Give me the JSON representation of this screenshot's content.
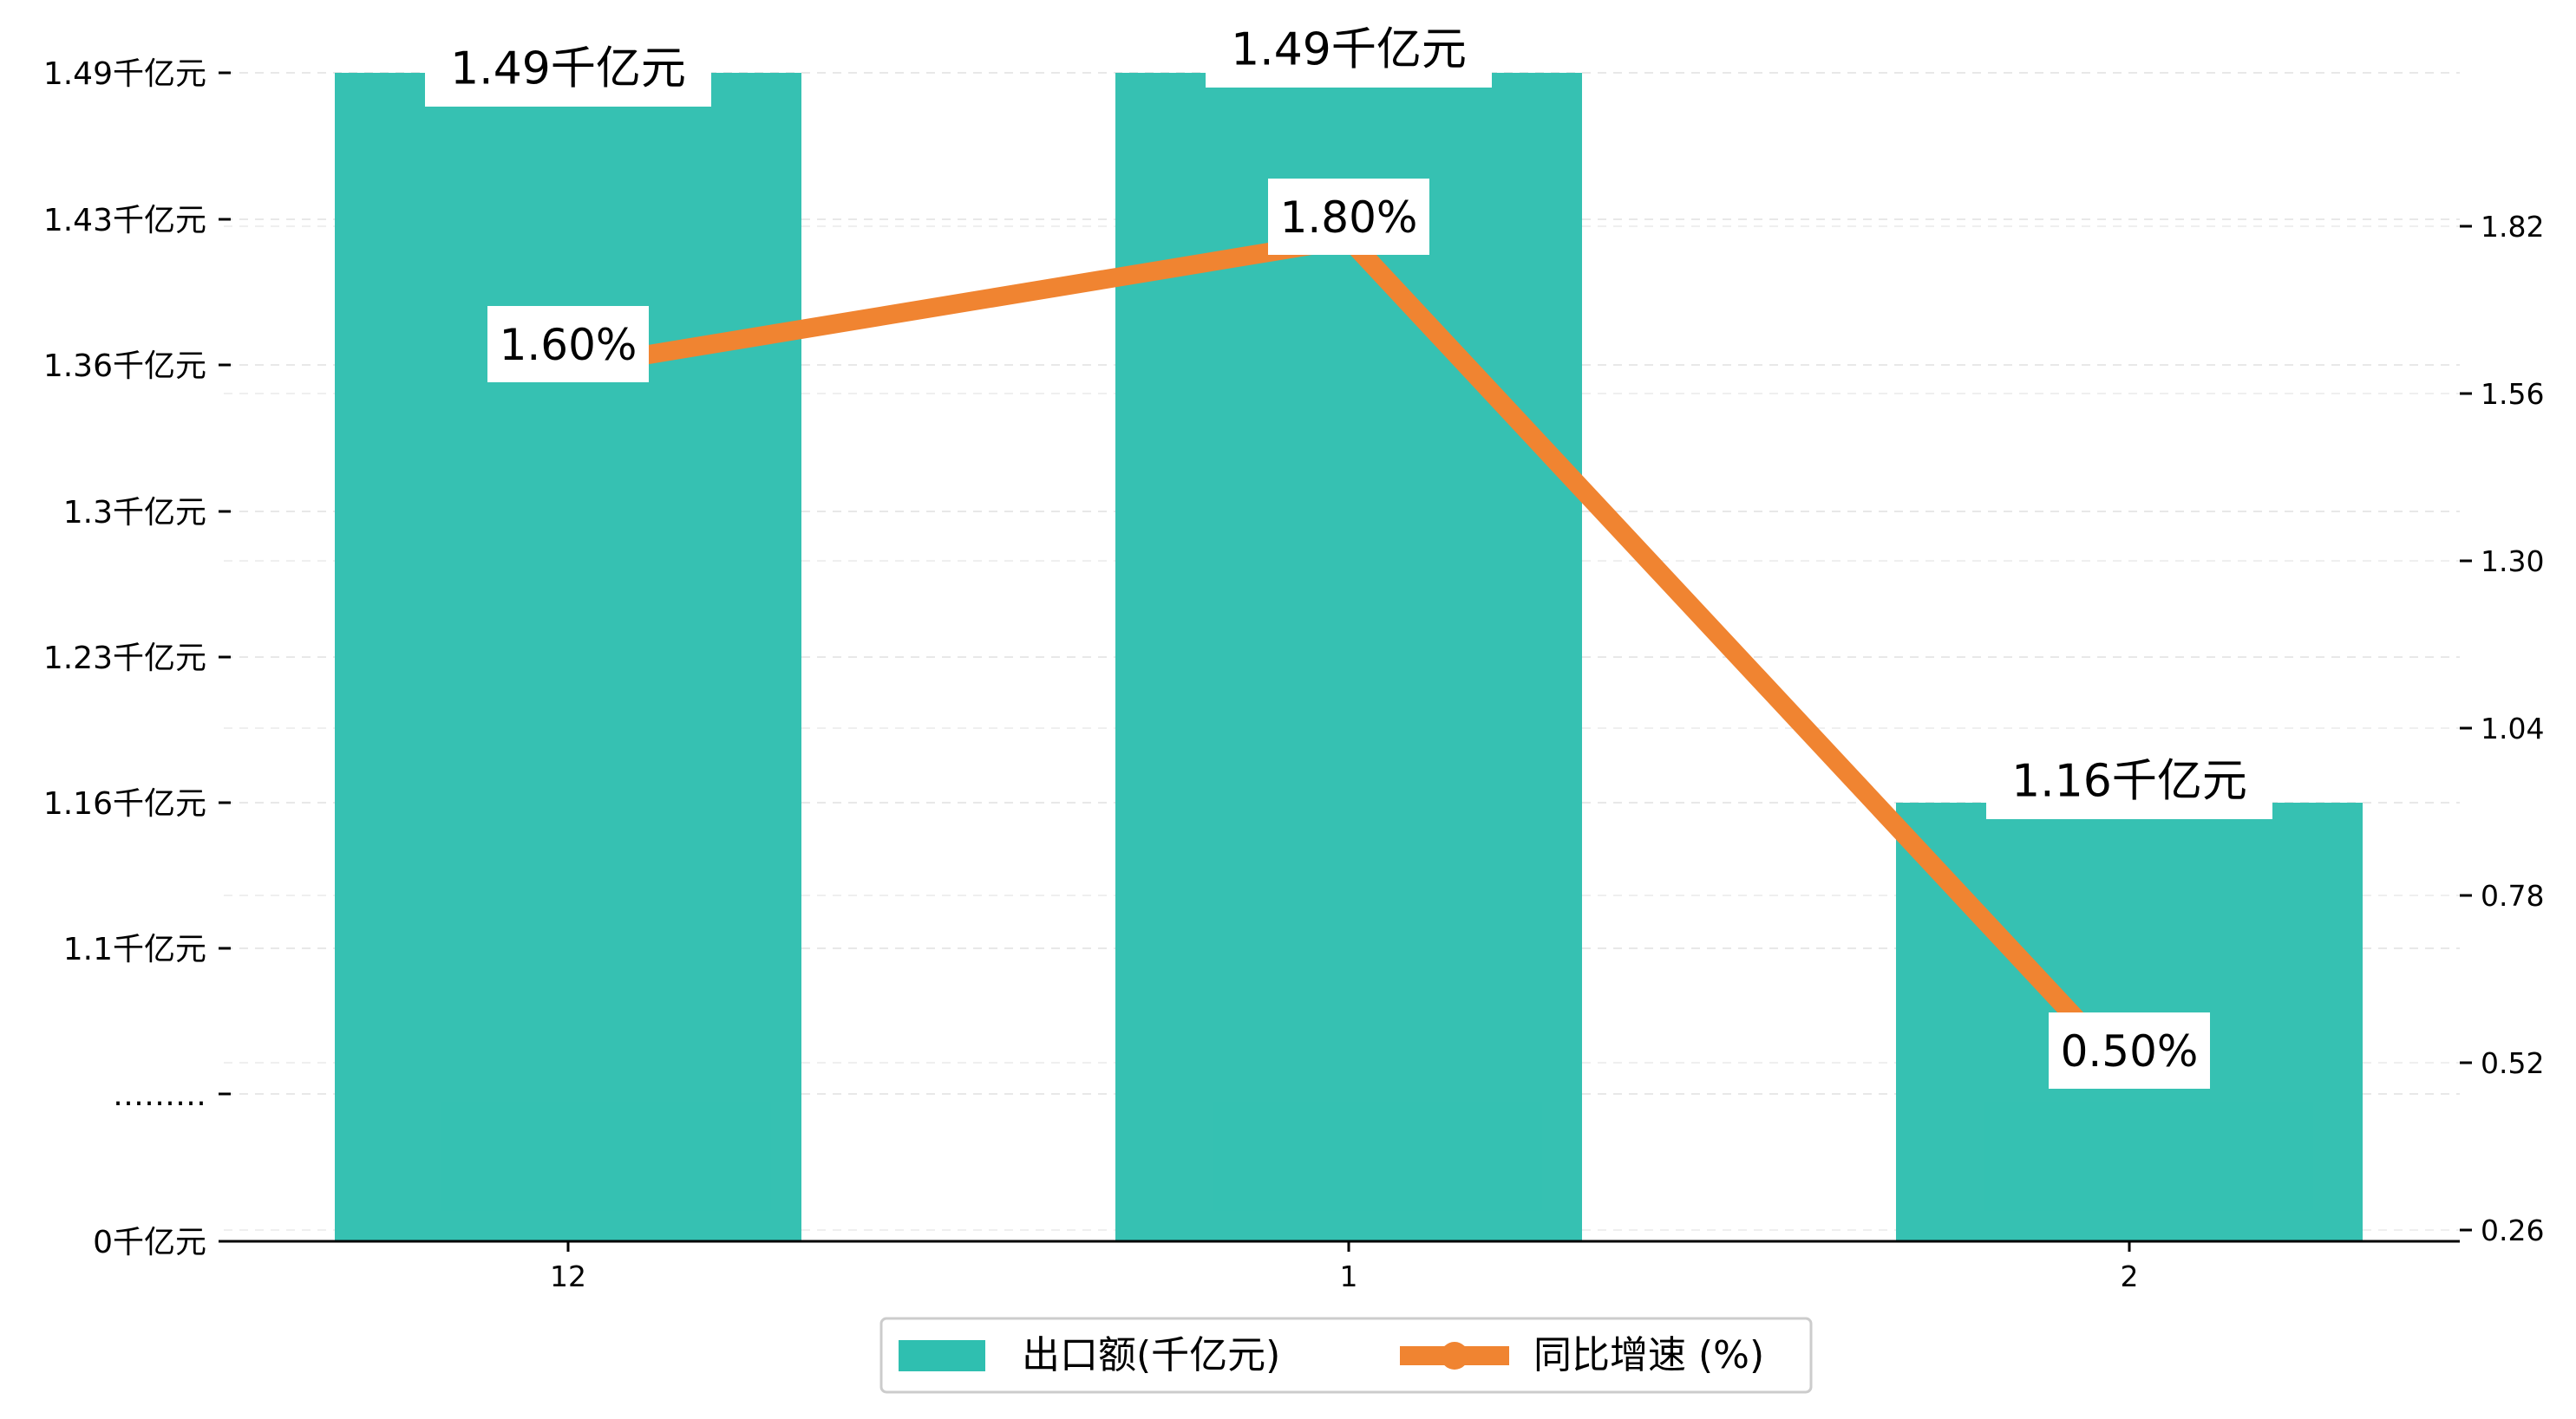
{
  "chart_data": {
    "type": "bar",
    "categories": [
      "12",
      "1",
      "2"
    ],
    "series": [
      {
        "name": "出口额(千亿元)",
        "type": "bar",
        "axis": "left",
        "values": [
          1.49,
          1.49,
          1.16
        ],
        "labels": [
          "1.49千亿元",
          "1.49千亿元",
          "1.16千亿元"
        ],
        "color": "#2fbfb0"
      },
      {
        "name": "同比增速 (%)",
        "type": "line",
        "axis": "right",
        "values": [
          1.6,
          1.8,
          0.5
        ],
        "labels": [
          "1.60%",
          "1.80%",
          "0.50%"
        ],
        "color": "#f08431"
      }
    ],
    "left_axis": {
      "tick_labels": [
        "0千亿元",
        "………",
        "1.1千亿元",
        "1.16千亿元",
        "1.23千亿元",
        "1.3千亿元",
        "1.36千亿元",
        "1.43千亿元",
        "1.49千亿元"
      ],
      "broken_axis": true
    },
    "right_axis": {
      "ticks": [
        0.26,
        0.52,
        0.78,
        1.04,
        1.3,
        1.56,
        1.82
      ],
      "tick_labels": [
        "0.26",
        "0.52",
        "0.78",
        "1.04",
        "1.30",
        "1.56",
        "1.82"
      ],
      "ylim": [
        0.26,
        2.08
      ]
    },
    "grid": true,
    "legend_position": "bottom-center",
    "title": "",
    "xlabel": "",
    "ylabel": ""
  }
}
